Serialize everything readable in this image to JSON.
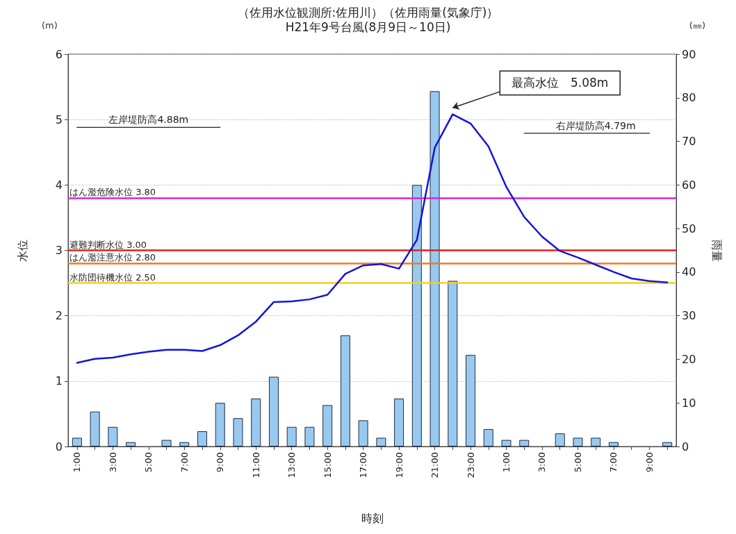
{
  "chart_data": {
    "type": "line",
    "title": "（佐用水位観測所:佐用川）（佐用雨量(気象庁)）",
    "subtitle": "H21年9号台風(8月9日～10日)",
    "xlabel": "時刻",
    "ylabel": "水位",
    "y2label": "雨量",
    "categories": [
      "1:00",
      null,
      "3:00",
      null,
      "5:00",
      null,
      "7:00",
      null,
      "9:00",
      null,
      "11:00",
      null,
      "13:00",
      null,
      "15:00",
      null,
      "17:00",
      null,
      "19:00",
      null,
      "21:00",
      null,
      "23:00",
      null,
      "1:00",
      null,
      "3:00",
      null,
      "5:00",
      null,
      "7:00",
      null,
      "9:00",
      null
    ],
    "series": [
      {
        "type": "bar",
        "axis": "y2",
        "color": "#99c9ef",
        "values": [
          2,
          8,
          4.5,
          1,
          0,
          1.5,
          1,
          3.5,
          10,
          6.5,
          11,
          16,
          4.5,
          4.5,
          9.5,
          25.5,
          6,
          2,
          11,
          60,
          81.5,
          38,
          21,
          4,
          1.5,
          1.5,
          0,
          3,
          2,
          2,
          1,
          0,
          0,
          1
        ]
      },
      {
        "axis": "y",
        "color": "#1414d8",
        "values": [
          1.28,
          1.34,
          1.36,
          1.41,
          1.45,
          1.48,
          1.48,
          1.46,
          1.55,
          1.7,
          1.91,
          2.21,
          2.22,
          2.25,
          2.32,
          2.64,
          2.77,
          2.79,
          2.72,
          3.16,
          4.57,
          5.08,
          4.94,
          4.59,
          3.97,
          3.51,
          3.21,
          2.99,
          2.89,
          2.78,
          2.67,
          2.57,
          2.53,
          2.51
        ]
      },
      {
        "axis": "y",
        "color": "#222222",
        "values": [
          4.88,
          4.88,
          4.88,
          4.88,
          4.88,
          4.88,
          4.88,
          4.88,
          4.88,
          null,
          null,
          null,
          null,
          null,
          null,
          null,
          null,
          null,
          null,
          null,
          null,
          null,
          null,
          null,
          null,
          null,
          null,
          null,
          null,
          null,
          null,
          null,
          null,
          null
        ]
      },
      {
        "axis": "y",
        "color": "#222222",
        "values": [
          null,
          null,
          null,
          null,
          null,
          null,
          null,
          null,
          null,
          null,
          null,
          null,
          null,
          null,
          null,
          null,
          null,
          null,
          null,
          null,
          null,
          null,
          null,
          null,
          null,
          4.79,
          4.79,
          4.79,
          4.79,
          4.79,
          4.79,
          4.79,
          4.79,
          null
        ]
      }
    ],
    "ylim": [
      0,
      6
    ],
    "yticks": [
      0,
      1,
      2,
      3,
      4,
      5,
      6
    ],
    "y2lim": [
      0,
      90
    ],
    "y2ticks": [
      0,
      10,
      20,
      30,
      40,
      50,
      60,
      70,
      80,
      90
    ],
    "grid": "y",
    "marker": "none",
    "line_style": "solid",
    "ref_lines": [
      {
        "axis": "y",
        "value": 3.8,
        "label": "はん濫危険水位 3.80",
        "color": "#e020e0"
      },
      {
        "axis": "y",
        "value": 3.0,
        "label": "避難判断水位 3.00",
        "color": "#e02020"
      },
      {
        "axis": "y",
        "value": 2.8,
        "label": "はん濫注意水位 2.80",
        "color": "#f07a20"
      },
      {
        "axis": "y",
        "value": 2.5,
        "label": "水防団待機水位 2.50",
        "color": "#f2d020"
      }
    ],
    "annotations": [
      "(m)",
      "(㎜)",
      "最高水位　5.08m",
      "左岸堤防高4.88m",
      "右岸堤防高4.79m"
    ]
  }
}
